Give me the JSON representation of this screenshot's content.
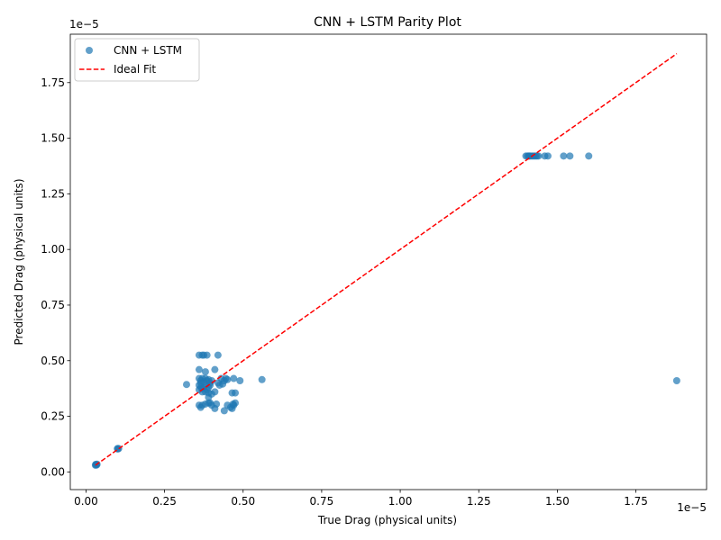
{
  "chart_data": {
    "type": "scatter",
    "title": "CNN + LSTM Parity Plot",
    "xlabel": "True Drag (physical units)",
    "ylabel": "Predicted Drag (physical units)",
    "x_offset_text": "1e−5",
    "y_offset_text": "1e−5",
    "xlim": [
      -0.05,
      1.975
    ],
    "ylim": [
      -0.0795,
      1.9676
    ],
    "xticks": [
      0.0,
      0.25,
      0.5,
      0.75,
      1.0,
      1.25,
      1.5,
      1.75
    ],
    "xtick_labels": [
      "0.00",
      "0.25",
      "0.50",
      "0.75",
      "1.00",
      "1.25",
      "1.50",
      "1.75"
    ],
    "yticks": [
      0.0,
      0.25,
      0.5,
      0.75,
      1.0,
      1.25,
      1.5,
      1.75
    ],
    "ytick_labels": [
      "0.00",
      "0.25",
      "0.50",
      "0.75",
      "1.00",
      "1.25",
      "1.50",
      "1.75"
    ],
    "grid": false,
    "legend_position": "top-left",
    "series": [
      {
        "name": "CNN + LSTM",
        "kind": "scatter",
        "color": "#1f77b4",
        "points": [
          [
            0.03,
            0.03
          ],
          [
            0.035,
            0.035
          ],
          [
            0.032,
            0.032
          ],
          [
            0.031,
            0.034
          ],
          [
            0.034,
            0.031
          ],
          [
            0.1,
            0.105
          ],
          [
            0.104,
            0.105
          ],
          [
            0.101,
            0.103
          ],
          [
            0.36,
            0.525
          ],
          [
            0.37,
            0.525
          ],
          [
            0.385,
            0.525
          ],
          [
            0.42,
            0.525
          ],
          [
            0.375,
            0.525
          ],
          [
            0.36,
            0.46
          ],
          [
            0.41,
            0.46
          ],
          [
            0.38,
            0.45
          ],
          [
            0.32,
            0.393
          ],
          [
            0.36,
            0.42
          ],
          [
            0.365,
            0.41
          ],
          [
            0.37,
            0.42
          ],
          [
            0.375,
            0.405
          ],
          [
            0.38,
            0.42
          ],
          [
            0.385,
            0.41
          ],
          [
            0.39,
            0.415
          ],
          [
            0.395,
            0.4
          ],
          [
            0.4,
            0.41
          ],
          [
            0.36,
            0.39
          ],
          [
            0.365,
            0.38
          ],
          [
            0.37,
            0.375
          ],
          [
            0.375,
            0.38
          ],
          [
            0.38,
            0.39
          ],
          [
            0.385,
            0.37
          ],
          [
            0.39,
            0.38
          ],
          [
            0.365,
            0.4
          ],
          [
            0.36,
            0.37
          ],
          [
            0.37,
            0.36
          ],
          [
            0.38,
            0.36
          ],
          [
            0.39,
            0.355
          ],
          [
            0.4,
            0.35
          ],
          [
            0.41,
            0.36
          ],
          [
            0.395,
            0.39
          ],
          [
            0.42,
            0.4
          ],
          [
            0.43,
            0.42
          ],
          [
            0.44,
            0.41
          ],
          [
            0.445,
            0.42
          ],
          [
            0.45,
            0.415
          ],
          [
            0.47,
            0.42
          ],
          [
            0.49,
            0.41
          ],
          [
            0.435,
            0.395
          ],
          [
            0.425,
            0.39
          ],
          [
            0.465,
            0.355
          ],
          [
            0.475,
            0.355
          ],
          [
            0.39,
            0.335
          ],
          [
            0.36,
            0.3
          ],
          [
            0.365,
            0.29
          ],
          [
            0.37,
            0.3
          ],
          [
            0.38,
            0.305
          ],
          [
            0.39,
            0.31
          ],
          [
            0.395,
            0.31
          ],
          [
            0.4,
            0.3
          ],
          [
            0.41,
            0.285
          ],
          [
            0.415,
            0.305
          ],
          [
            0.44,
            0.275
          ],
          [
            0.45,
            0.3
          ],
          [
            0.46,
            0.29
          ],
          [
            0.465,
            0.285
          ],
          [
            0.47,
            0.3
          ],
          [
            0.475,
            0.31
          ],
          [
            0.468,
            0.305
          ],
          [
            0.56,
            0.415
          ],
          [
            1.88,
            0.41
          ],
          [
            1.4,
            1.42
          ],
          [
            1.405,
            1.42
          ],
          [
            1.41,
            1.42
          ],
          [
            1.415,
            1.42
          ],
          [
            1.42,
            1.42
          ],
          [
            1.425,
            1.42
          ],
          [
            1.43,
            1.42
          ],
          [
            1.435,
            1.42
          ],
          [
            1.44,
            1.42
          ],
          [
            1.41,
            1.42
          ],
          [
            1.46,
            1.42
          ],
          [
            1.47,
            1.42
          ],
          [
            1.52,
            1.42
          ],
          [
            1.54,
            1.42
          ],
          [
            1.6,
            1.42
          ]
        ]
      },
      {
        "name": "Ideal Fit",
        "kind": "line",
        "color": "#ff0000",
        "dashed": true,
        "x": [
          0.03,
          1.88
        ],
        "y": [
          0.03,
          1.88
        ]
      }
    ]
  }
}
